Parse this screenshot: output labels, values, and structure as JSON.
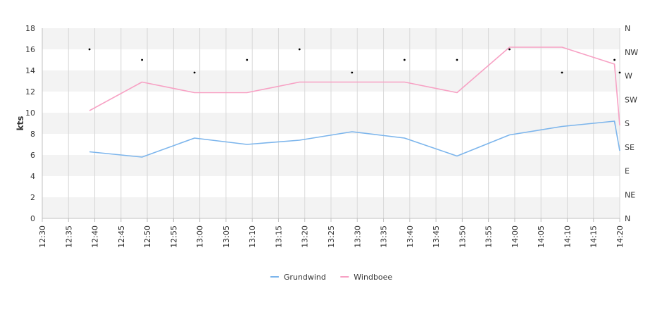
{
  "chart_data": {
    "type": "line",
    "ylabel": "kts",
    "ylim": [
      0,
      18
    ],
    "y_ticks": [
      "0",
      "2",
      "4",
      "6",
      "8",
      "10",
      "12",
      "14",
      "16",
      "18"
    ],
    "x_ticks": [
      "12:30",
      "12:35",
      "12:40",
      "12:45",
      "12:50",
      "12:55",
      "13:00",
      "13:05",
      "13:10",
      "13:15",
      "13:20",
      "13:25",
      "13:30",
      "13:35",
      "13:40",
      "13:45",
      "13:50",
      "13:55",
      "14:00",
      "14:05",
      "14:10",
      "14:15",
      "14:20"
    ],
    "right_axis_ticks": [
      "N",
      "NE",
      "E",
      "SE",
      "S",
      "SW",
      "W",
      "NW",
      "N"
    ],
    "grid": true,
    "legend_position": "bottom",
    "x": [
      "12:39",
      "12:49",
      "12:59",
      "13:09",
      "13:19",
      "13:29",
      "13:39",
      "13:49",
      "13:59",
      "14:09",
      "14:19",
      "14:20"
    ],
    "series": [
      {
        "name": "Grundwind",
        "color": "#7cb5ec",
        "values": [
          6.3,
          5.8,
          7.6,
          7.0,
          7.4,
          8.2,
          7.6,
          5.9,
          7.9,
          8.7,
          9.2,
          6.4
        ]
      },
      {
        "name": "Windboee",
        "color": "#f7a1c4",
        "values": [
          10.2,
          12.9,
          11.9,
          11.9,
          12.9,
          12.9,
          12.9,
          11.9,
          16.2,
          16.2,
          14.6,
          8.8
        ]
      }
    ],
    "direction_points": {
      "x": [
        "12:39",
        "12:49",
        "12:59",
        "13:09",
        "13:19",
        "13:29",
        "13:39",
        "13:49",
        "13:59",
        "14:09",
        "14:19",
        "14:20"
      ],
      "values": [
        16,
        15,
        13.8,
        15,
        16,
        13.8,
        15,
        15,
        16,
        13.8,
        15,
        13.8
      ]
    }
  }
}
